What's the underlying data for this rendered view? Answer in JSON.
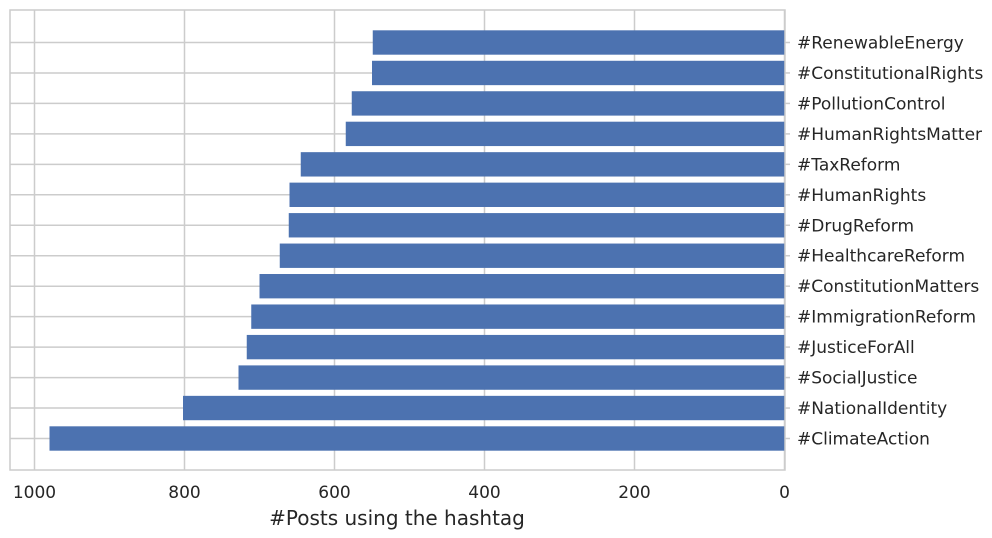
{
  "chart_data": {
    "type": "bar",
    "orientation": "horizontal",
    "x_axis_inverted": true,
    "y_labels_side": "right",
    "categories": [
      "#RenewableEnergy",
      "#ConstitutionalRights",
      "#PollutionControl",
      "#HumanRightsMatter",
      "#TaxReform",
      "#HumanRights",
      "#DrugReform",
      "#HealthcareReform",
      "#ConstitutionMatters",
      "#ImmigrationReform",
      "#JusticeForAll",
      "#SocialJustice",
      "#NationalIdentity",
      "#ClimateAction"
    ],
    "values": [
      549,
      550,
      577,
      585,
      645,
      660,
      661,
      673,
      700,
      711,
      717,
      728,
      802,
      980
    ],
    "xlabel": "#Posts using the hashtag",
    "ylabel": "",
    "title": "",
    "xlim": [
      1030,
      0
    ],
    "xticks": [
      1000,
      800,
      600,
      400,
      200,
      0
    ],
    "xtick_labels": [
      "1000",
      "800",
      "600",
      "400",
      "200",
      "0"
    ],
    "grid": true,
    "colors": {
      "bar": "#4c72b0",
      "grid": "#cccccc",
      "spine": "#cccccc",
      "text": "#262626"
    }
  }
}
